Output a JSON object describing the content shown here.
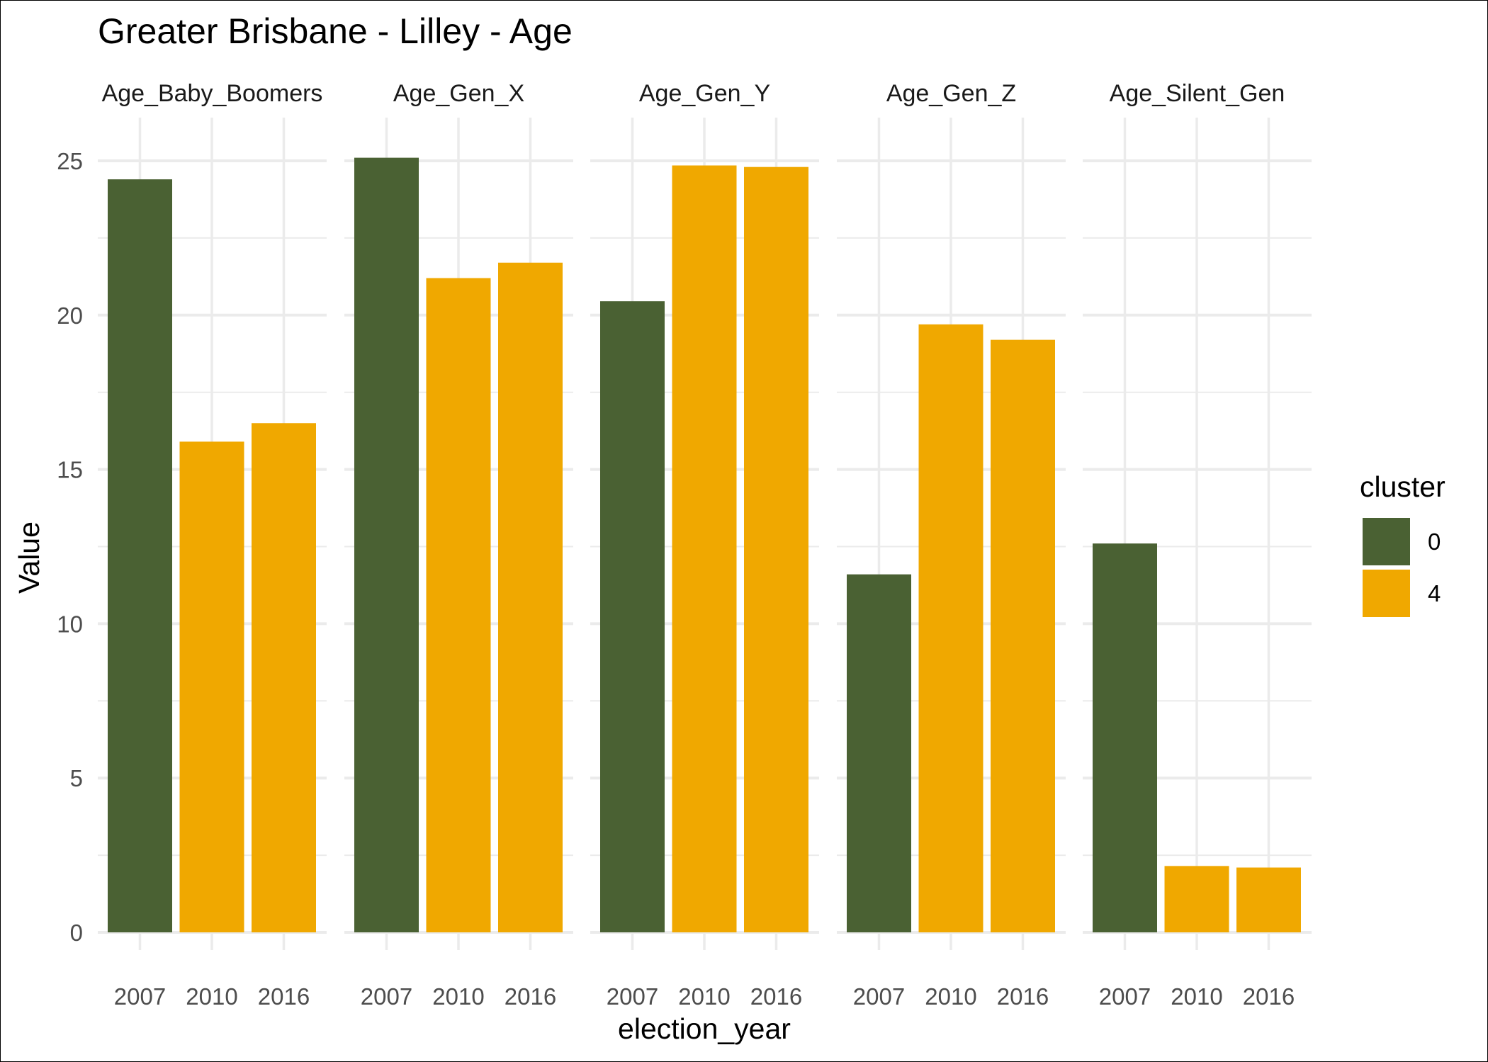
{
  "chart_data": {
    "type": "bar",
    "title": "Greater Brisbane - Lilley - Age",
    "xlabel": "election_year",
    "ylabel": "Value",
    "ylim": [
      0,
      26.4
    ],
    "yticks": [
      0,
      5,
      10,
      15,
      20,
      25
    ],
    "grid": true,
    "legend": {
      "title": "cluster",
      "position": "right",
      "entries": [
        {
          "label": "0",
          "color": "#4a6133"
        },
        {
          "label": "4",
          "color": "#f0a800"
        }
      ]
    },
    "categories": [
      "2007",
      "2010",
      "2016"
    ],
    "facets": [
      {
        "name": "Age_Baby_Boomers",
        "bars": [
          {
            "x": "2007",
            "value": 24.4,
            "cluster": "0"
          },
          {
            "x": "2010",
            "value": 15.9,
            "cluster": "4"
          },
          {
            "x": "2016",
            "value": 16.5,
            "cluster": "4"
          }
        ]
      },
      {
        "name": "Age_Gen_X",
        "bars": [
          {
            "x": "2007",
            "value": 25.1,
            "cluster": "0"
          },
          {
            "x": "2010",
            "value": 21.2,
            "cluster": "4"
          },
          {
            "x": "2016",
            "value": 21.7,
            "cluster": "4"
          }
        ]
      },
      {
        "name": "Age_Gen_Y",
        "bars": [
          {
            "x": "2007",
            "value": 20.45,
            "cluster": "0"
          },
          {
            "x": "2010",
            "value": 24.85,
            "cluster": "4"
          },
          {
            "x": "2016",
            "value": 24.8,
            "cluster": "4"
          }
        ]
      },
      {
        "name": "Age_Gen_Z",
        "bars": [
          {
            "x": "2007",
            "value": 11.6,
            "cluster": "0"
          },
          {
            "x": "2010",
            "value": 19.7,
            "cluster": "4"
          },
          {
            "x": "2016",
            "value": 19.2,
            "cluster": "4"
          }
        ]
      },
      {
        "name": "Age_Silent_Gen",
        "bars": [
          {
            "x": "2007",
            "value": 12.6,
            "cluster": "0"
          },
          {
            "x": "2010",
            "value": 2.15,
            "cluster": "4"
          },
          {
            "x": "2016",
            "value": 2.1,
            "cluster": "4"
          }
        ]
      }
    ]
  }
}
